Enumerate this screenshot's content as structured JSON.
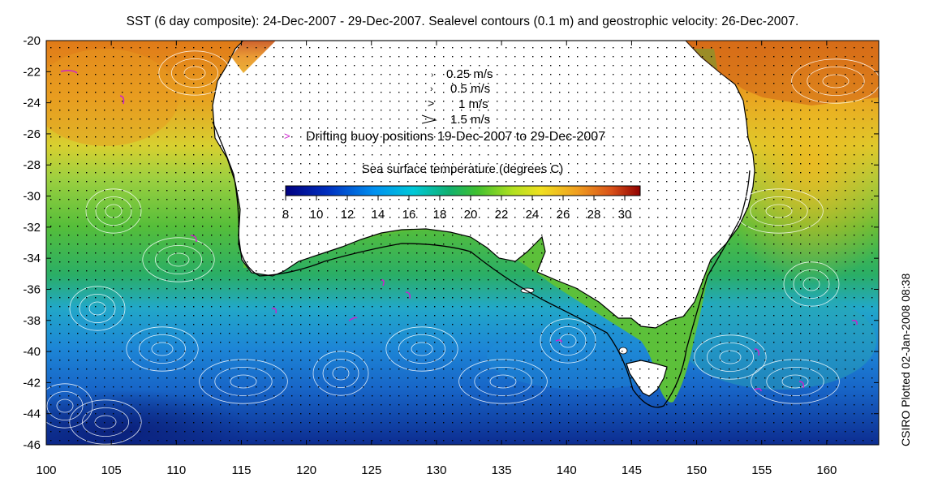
{
  "title": "SST (6 day composite): 24-Dec-2007 - 29-Dec-2007. Sealevel contours (0.1 m) and geostrophic velocity: 26-Dec-2007.",
  "credit": "CSIRO Plotted 02-Jan-2008 08:38",
  "axes": {
    "lon_ticks": [
      100,
      105,
      110,
      115,
      120,
      125,
      130,
      135,
      140,
      145,
      150,
      155,
      160
    ],
    "lat_ticks": [
      -20,
      -22,
      -24,
      -26,
      -28,
      -30,
      -32,
      -34,
      -36,
      -38,
      -40,
      -42,
      -44,
      -46
    ],
    "lon_range": [
      100,
      164
    ],
    "lat_range": [
      -46,
      -20
    ]
  },
  "velocity_key": {
    "items": [
      "0.25 m/s",
      "0.5 m/s",
      "1 m/s",
      "1.5 m/s"
    ],
    "buoy_label": "Drifting buoy positions 19-Dec-2007 to 29-Dec-2007"
  },
  "colorbar": {
    "title": "Sea surface temperature (degrees C)",
    "range": [
      8,
      31
    ],
    "ticks": [
      8,
      10,
      12,
      14,
      16,
      18,
      20,
      22,
      24,
      26,
      28,
      30
    ]
  },
  "colors": {
    "land": "#ffffff",
    "contours": "#ffffff",
    "buoy": "#cc22cc",
    "isobath": "#000000"
  }
}
